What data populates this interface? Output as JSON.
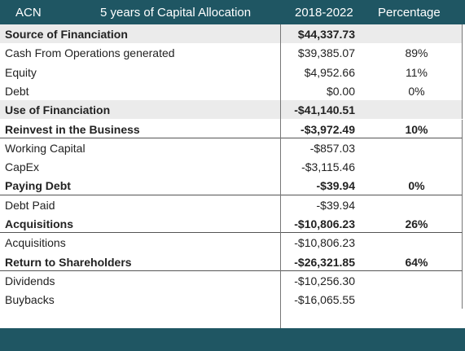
{
  "table": {
    "header": [
      "ACN",
      "5 years of Capital Allocation",
      "2018-2022",
      "Percentage"
    ],
    "rows": [
      [
        "Source of Financiation",
        "$44,337.73"
      ],
      [
        "Cash From Operations generated",
        "$39,385.07",
        "89%"
      ],
      [
        "Equity",
        "$4,952.66",
        "11%"
      ],
      [
        "Debt",
        "$0.00",
        "0%"
      ],
      [
        "Use of Financiation",
        "-$41,140.51"
      ],
      [
        "Reinvest in the Business",
        "-$3,972.49",
        "10%"
      ],
      [
        "Working Capital",
        "-$857.03"
      ],
      [
        "CapEx",
        "-$3,115.46"
      ],
      [
        "Paying Debt",
        "-$39.94",
        "0%"
      ],
      [
        "Debt Paid",
        "-$39.94"
      ],
      [
        "Acquisitions",
        "-$10,806.23",
        "26%"
      ],
      [
        "Acquisitions",
        "-$10,806.23"
      ],
      [
        "Return to Shareholders",
        "-$26,321.85",
        "64%"
      ],
      [
        "Dividends",
        "-$10,256.30"
      ],
      [
        "Buybacks",
        "-$16,065.55"
      ]
    ]
  }
}
